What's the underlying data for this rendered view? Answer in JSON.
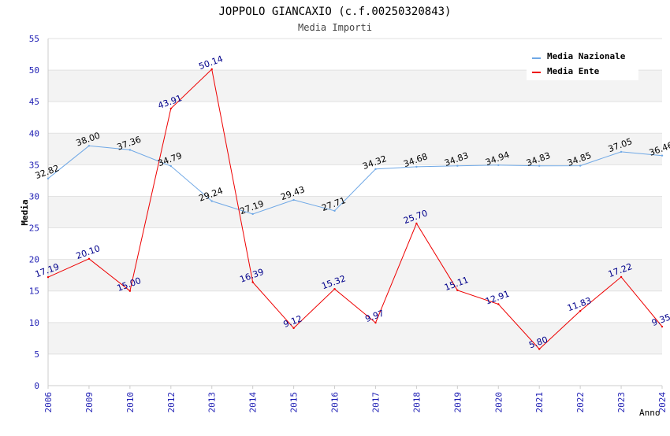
{
  "chart_data": {
    "type": "line",
    "title": "JOPPOLO GIANCAXIO (c.f.00250320843)",
    "subtitle": "Media Importi",
    "xlabel": "Anno",
    "ylabel": "Media",
    "ylim": [
      0,
      55
    ],
    "y_ticks": [
      "0",
      "5",
      "10",
      "15",
      "20",
      "25",
      "30",
      "35",
      "40",
      "45",
      "50",
      "55"
    ],
    "categories": [
      "2006",
      "2009",
      "2010",
      "2012",
      "2013",
      "2014",
      "2015",
      "2016",
      "2017",
      "2018",
      "2019",
      "2020",
      "2021",
      "2022",
      "2023",
      "2024"
    ],
    "grid": "horizontal bands",
    "legend_position": "top-right",
    "series": [
      {
        "name": "Media Nazionale",
        "color": "#6fa8e6",
        "label_color": "#000000",
        "values": [
          32.82,
          38.0,
          37.36,
          34.79,
          29.24,
          27.19,
          29.43,
          27.71,
          34.32,
          34.68,
          34.83,
          34.94,
          34.83,
          34.85,
          37.05,
          36.46
        ],
        "labels": [
          "32.82",
          "38.00",
          "37.36",
          "34.79",
          "29.24",
          "27.19",
          "29.43",
          "27.71",
          "34.32",
          "34.68",
          "34.83",
          "34.94",
          "34.83",
          "34.85",
          "37.05",
          "36.46"
        ]
      },
      {
        "name": "Media Ente",
        "color": "#ee0000",
        "label_color": "#00008b",
        "values": [
          17.19,
          20.1,
          15.0,
          43.91,
          50.14,
          16.39,
          9.12,
          15.32,
          9.97,
          25.7,
          15.11,
          12.91,
          5.8,
          11.83,
          17.22,
          9.35
        ],
        "labels": [
          "17.19",
          "20.10",
          "15.00",
          "43.91",
          "50.14",
          "16.39",
          "9.12",
          "15.32",
          "9.97",
          "25.70",
          "15.11",
          "12.91",
          "5.80",
          "11.83",
          "17.22",
          "9.35"
        ]
      }
    ]
  }
}
